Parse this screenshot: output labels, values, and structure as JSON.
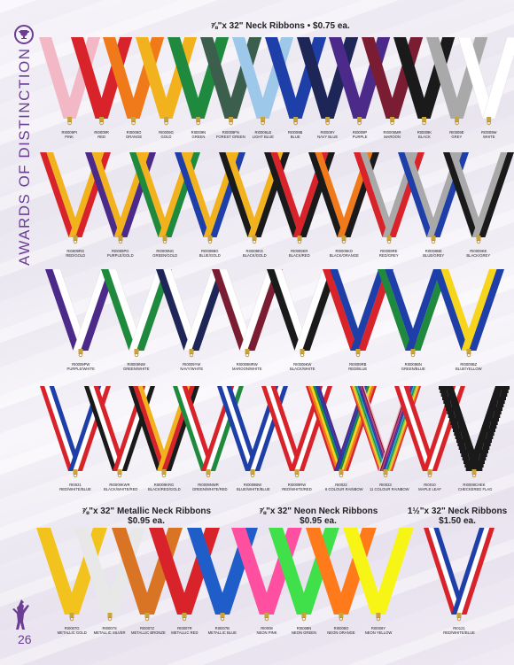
{
  "brand": "AWARDS OF DISTINCTION",
  "page_number": "26",
  "sections": {
    "neck": "⅞\"x 32\" Neck Ribbons • $0.75 ea.",
    "metallic_title": "⅞\"x 32\"  Metallic Neck Ribbons",
    "metallic_price": "$0.95 ea.",
    "neon_title": "⅞\"x 32\"  Neon Neck Ribbons",
    "neon_price": "$0.95 ea.",
    "wide_title": "1½\"x 32\" Neck Ribbons",
    "wide_price": "$1.50 ea."
  },
  "row1": [
    {
      "code": "RI0009PI",
      "name": "PINK",
      "colors": [
        "#f2b8c6"
      ]
    },
    {
      "code": "RI0009R",
      "name": "RED",
      "colors": [
        "#d8232a"
      ]
    },
    {
      "code": "RI0009O",
      "name": "ORANGE",
      "colors": [
        "#f07a1a"
      ]
    },
    {
      "code": "RI0009G",
      "name": "GOLD",
      "colors": [
        "#f2b21d"
      ]
    },
    {
      "code": "RI0009N",
      "name": "GREEN",
      "colors": [
        "#1f8a3d"
      ]
    },
    {
      "code": "RI0009FN",
      "name": "FOREST GREEN",
      "colors": [
        "#3c5e4c"
      ]
    },
    {
      "code": "RI0009LB",
      "name": "LIGHT BLUE",
      "colors": [
        "#9ec8ea"
      ]
    },
    {
      "code": "RI0009B",
      "name": "BLUE",
      "colors": [
        "#1f3fa8"
      ]
    },
    {
      "code": "RI0009Y",
      "name": "NAVY BLUE",
      "colors": [
        "#1e2557"
      ]
    },
    {
      "code": "RI0009P",
      "name": "PURPLE",
      "colors": [
        "#4b2a8a"
      ]
    },
    {
      "code": "RI0009MR",
      "name": "MAROON",
      "colors": [
        "#7a1d33"
      ]
    },
    {
      "code": "RI0009K",
      "name": "BLACK",
      "colors": [
        "#1a1a1a"
      ]
    },
    {
      "code": "RI0009E",
      "name": "GREY",
      "colors": [
        "#a9a9a9"
      ]
    },
    {
      "code": "RI0009W",
      "name": "WHITE",
      "colors": [
        "#ffffff"
      ]
    }
  ],
  "row2": [
    {
      "code": "RI0009RG",
      "name": "RED/GOLD",
      "colors": [
        "#d8232a",
        "#f2b21d"
      ]
    },
    {
      "code": "RI0009PG",
      "name": "PURPLE/GOLD",
      "colors": [
        "#4b2a8a",
        "#f2b21d"
      ]
    },
    {
      "code": "RI0009NG",
      "name": "GREEN/GOLD",
      "colors": [
        "#1f8a3d",
        "#f2b21d"
      ]
    },
    {
      "code": "RI0009BG",
      "name": "BLUE/GOLD",
      "colors": [
        "#1f3fa8",
        "#f2b21d"
      ]
    },
    {
      "code": "RI0009KG",
      "name": "BLACK/GOLD",
      "colors": [
        "#1a1a1a",
        "#f2b21d"
      ]
    },
    {
      "code": "RI0009KR",
      "name": "BLACK/RED",
      "colors": [
        "#1a1a1a",
        "#d8232a"
      ]
    },
    {
      "code": "RI0009KO",
      "name": "BLACK/ORANGE",
      "colors": [
        "#1a1a1a",
        "#f07a1a"
      ]
    },
    {
      "code": "RI0009RE",
      "name": "RED/GREY",
      "colors": [
        "#d8232a",
        "#a9a9a9"
      ]
    },
    {
      "code": "RI0009BE",
      "name": "BLUE/GREY",
      "colors": [
        "#1f3fa8",
        "#a9a9a9"
      ]
    },
    {
      "code": "RI0009KE",
      "name": "BLACK/GREY",
      "colors": [
        "#1a1a1a",
        "#a9a9a9"
      ]
    }
  ],
  "row3": [
    {
      "code": "RI0009PW",
      "name": "PURPLE/WHITE",
      "colors": [
        "#4b2a8a",
        "#ffffff"
      ]
    },
    {
      "code": "RI0009NW",
      "name": "GREEN/WHITE",
      "colors": [
        "#1f8a3d",
        "#ffffff"
      ]
    },
    {
      "code": "RI0009YW",
      "name": "NAVY/WHITE",
      "colors": [
        "#1e2557",
        "#ffffff"
      ]
    },
    {
      "code": "RI0009MRW",
      "name": "MAROON/WHITE",
      "colors": [
        "#7a1d33",
        "#ffffff"
      ]
    },
    {
      "code": "RI0009KW",
      "name": "BLACK/WHITE",
      "colors": [
        "#1a1a1a",
        "#ffffff"
      ]
    },
    {
      "code": "RI0009RB",
      "name": "RED/BLUE",
      "colors": [
        "#d8232a",
        "#1f3fa8"
      ]
    },
    {
      "code": "RI0009BN",
      "name": "GREEN/BLUE",
      "colors": [
        "#1f8a3d",
        "#1f3fa8"
      ]
    },
    {
      "code": "RI0009BZ",
      "name": "BLUE/YELLOW",
      "colors": [
        "#1f3fa8",
        "#f7d51c"
      ]
    }
  ],
  "row4": [
    {
      "code": "RI0021",
      "name": "RED/WHITE/BLUE",
      "colors": [
        "#d8232a",
        "#ffffff",
        "#1f3fa8"
      ]
    },
    {
      "code": "RI0009KWR",
      "name": "BLACK/WHITE/RED",
      "colors": [
        "#1a1a1a",
        "#ffffff",
        "#d8232a"
      ]
    },
    {
      "code": "RI0009KRG",
      "name": "BLACK/RED/GOLD",
      "colors": [
        "#1a1a1a",
        "#d8232a",
        "#f2b21d"
      ]
    },
    {
      "code": "RI0009NWR",
      "name": "GREEN/WHITE/RED",
      "colors": [
        "#1f8a3d",
        "#ffffff",
        "#d8232a"
      ]
    },
    {
      "code": "RI0009BW",
      "name": "BLUE/WHITE/BLUE",
      "colors": [
        "#1f3fa8",
        "#ffffff",
        "#1f3fa8"
      ]
    },
    {
      "code": "RI0009RW",
      "name": "RED/WHITE/RED",
      "colors": [
        "#d8232a",
        "#ffffff",
        "#d8232a"
      ]
    },
    {
      "code": "RI0022",
      "name": "6 COLOUR RAINBOW",
      "colors": [
        "#d8232a",
        "#f07a1a",
        "#f7d51c",
        "#1f8a3d",
        "#1f3fa8",
        "#4b2a8a"
      ]
    },
    {
      "code": "RI0023",
      "name": "11 COLOUR RAINBOW",
      "colors": [
        "#d8232a",
        "#f07a1a",
        "#f7d51c",
        "#8bc53f",
        "#1f8a3d",
        "#1fa8c8",
        "#1f3fa8",
        "#4b2a8a",
        "#c13a8a",
        "#7a1d33",
        "#f2b8c6"
      ]
    },
    {
      "code": "RI0010",
      "name": "MAPLE LEAF",
      "colors": [
        "#d8232a",
        "#ffffff",
        "#d8232a"
      ]
    },
    {
      "code": "RI0009CHEK",
      "name": "CHECKERED FLAG",
      "colors": [
        "#ffffff",
        "#1a1a1a"
      ]
    }
  ],
  "metallic": [
    {
      "code": "RI0007G",
      "name": "METALLIC GOLD",
      "colors": [
        "#f2c21d"
      ]
    },
    {
      "code": "RI0007S",
      "name": "METALLIC SILVER",
      "colors": [
        "#e8e8e8"
      ]
    },
    {
      "code": "RI0007Z",
      "name": "METALLIC BRONZE",
      "colors": [
        "#d97424"
      ]
    },
    {
      "code": "RI0007R",
      "name": "METALLIC RED",
      "colors": [
        "#d8232a"
      ]
    },
    {
      "code": "RI0007B",
      "name": "METALLIC BLUE",
      "colors": [
        "#1f5ec8"
      ]
    }
  ],
  "neon": [
    {
      "code": "RI0008",
      "name": "NEON PINK",
      "colors": [
        "#ff4fa0"
      ]
    },
    {
      "code": "RI0008N",
      "name": "NEON GREEN",
      "colors": [
        "#3fe04a"
      ]
    },
    {
      "code": "RI0008O",
      "name": "NEON ORANGE",
      "colors": [
        "#ff7a1a"
      ]
    },
    {
      "code": "RI0008Y",
      "name": "NEON YELLOW",
      "colors": [
        "#f6f516"
      ]
    }
  ],
  "wide": [
    {
      "code": "RI0121",
      "name": "RED/WHITE/BLUE",
      "colors": [
        "#d8232a",
        "#ffffff",
        "#1f3fa8"
      ]
    }
  ]
}
